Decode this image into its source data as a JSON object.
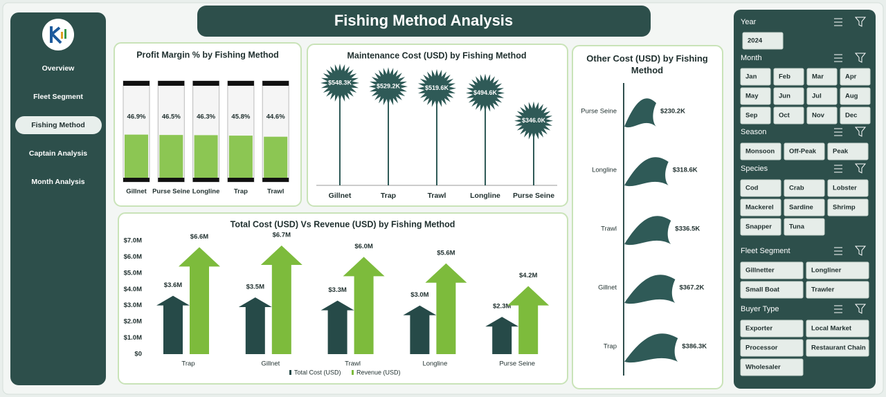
{
  "header": {
    "title": "Fishing Method Analysis"
  },
  "nav": [
    {
      "label": "Overview",
      "selected": false
    },
    {
      "label": "Fleet Segment",
      "selected": false
    },
    {
      "label": "Fishing Method",
      "selected": true
    },
    {
      "label": "Captain  Analysis",
      "selected": false
    },
    {
      "label": "Month Analysis",
      "selected": false
    }
  ],
  "slicers": [
    {
      "title": "Year",
      "items": [
        "2024"
      ]
    },
    {
      "title": "Month",
      "items": [
        "Jan",
        "Feb",
        "Mar",
        "Apr",
        "May",
        "Jun",
        "Jul",
        "Aug",
        "Sep",
        "Oct",
        "Nov",
        "Dec"
      ]
    },
    {
      "title": "Season",
      "items": [
        "Monsoon",
        "Off-Peak",
        "Peak"
      ]
    },
    {
      "title": "Species",
      "items": [
        "Cod",
        "Crab",
        "Lobster",
        "Mackerel",
        "Sardine",
        "Shrimp",
        "Snapper",
        "Tuna"
      ]
    },
    {
      "title": "Fleet Segment",
      "items": [
        "Gillnetter",
        "Longliner",
        "Small Boat",
        "Trawler"
      ]
    },
    {
      "title": "Buyer Type",
      "items": [
        "Exporter",
        "Local Market",
        "Processor",
        "Restaurant Chain",
        "Wholesaler"
      ]
    }
  ],
  "chart_data": [
    {
      "type": "cylinder",
      "title": "Profit Margin % by Fishing Method",
      "categories": [
        "Gillnet",
        "Purse Seine",
        "Longline",
        "Trap",
        "Trawl"
      ],
      "values": [
        46.9,
        46.5,
        46.3,
        45.8,
        44.6
      ],
      "value_labels": [
        "46.9%",
        "46.5%",
        "46.3%",
        "45.8%",
        "44.6%"
      ],
      "ylim": [
        0,
        100
      ],
      "color": "#8cc653"
    },
    {
      "type": "lollipop",
      "title": "Maintenance Cost (USD) by Fishing Method",
      "categories": [
        "Gillnet",
        "Trap",
        "Trawl",
        "Longline",
        "Purse Seine"
      ],
      "values": [
        548300,
        529200,
        519600,
        494600,
        346000
      ],
      "value_labels": [
        "$548.3K",
        "$529.2K",
        "$519.6K",
        "$494.6K",
        "$346.0K"
      ],
      "ylim": [
        0,
        600000
      ],
      "color": "#2f5a57"
    },
    {
      "type": "arrow",
      "title": "Total Cost (USD) Vs Revenue (USD) by Fishing Method",
      "categories": [
        "Trap",
        "Gillnet",
        "Trawl",
        "Longline",
        "Purse Seine"
      ],
      "series": [
        {
          "name": "Total Cost (USD)",
          "color": "#264a48",
          "values": [
            3600000,
            3500000,
            3300000,
            3000000,
            2300000
          ],
          "value_labels": [
            "$3.6M",
            "$3.5M",
            "$3.3M",
            "$3.0M",
            "$2.3M"
          ]
        },
        {
          "name": "Revenue (USD)",
          "color": "#7dbb3c",
          "values": [
            6600000,
            6700000,
            6000000,
            5600000,
            4200000
          ],
          "value_labels": [
            "$6.6M",
            "$6.7M",
            "$6.0M",
            "$5.6M",
            "$4.2M"
          ]
        }
      ],
      "ylim": [
        0,
        7000000
      ],
      "yticks": [
        {
          "value": 0,
          "label": "$0"
        },
        {
          "value": 1000000,
          "label": "$1.0M"
        },
        {
          "value": 2000000,
          "label": "$2.0M"
        },
        {
          "value": 3000000,
          "label": "$3.0M"
        },
        {
          "value": 4000000,
          "label": "$4.0M"
        },
        {
          "value": 5000000,
          "label": "$5.0M"
        },
        {
          "value": 6000000,
          "label": "$6.0M"
        },
        {
          "value": 7000000,
          "label": "$7.0M"
        }
      ],
      "legend": "bottom"
    },
    {
      "type": "flag",
      "title": "Other Cost (USD) by Fishing Method",
      "categories": [
        "Purse Seine",
        "Longline",
        "Trawl",
        "Gillnet",
        "Trap"
      ],
      "values": [
        230200,
        318600,
        336500,
        367200,
        386300
      ],
      "value_labels": [
        "$230.2K",
        "$318.6K",
        "$336.5K",
        "$367.2K",
        "$386.3K"
      ],
      "xlim": [
        0,
        400000
      ],
      "color": "#2f5a57"
    }
  ]
}
